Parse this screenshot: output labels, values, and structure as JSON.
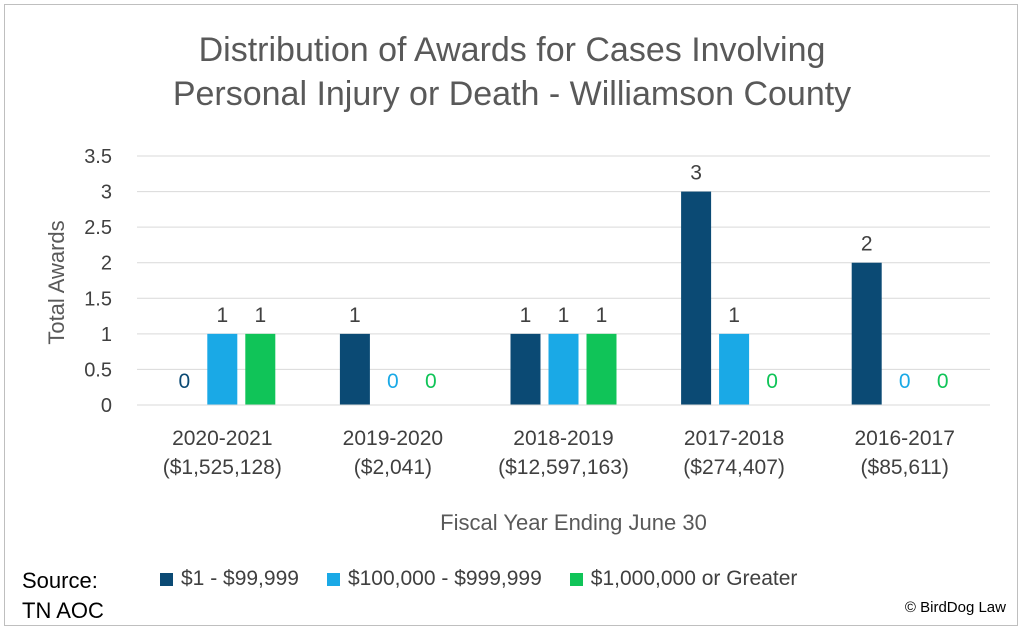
{
  "chart_data": {
    "type": "bar",
    "title_lines": [
      "Distribution of Awards for Cases Involving",
      "Personal Injury or Death - Williamson County"
    ],
    "xlabel": "Fiscal Year Ending June 30",
    "ylabel": "Total Awards",
    "ylim": [
      0,
      3.5
    ],
    "yticks": [
      "0",
      "0.5",
      "1",
      "1.5",
      "2",
      "2.5",
      "3",
      "3.5"
    ],
    "grid": true,
    "legend_position": "bottom",
    "categories": [
      [
        "2020-2021",
        "($1,525,128)"
      ],
      [
        "2019-2020",
        "($2,041)"
      ],
      [
        "2018-2019",
        "($12,597,163)"
      ],
      [
        "2017-2018",
        "($274,407)"
      ],
      [
        "2016-2017",
        "($85,611)"
      ]
    ],
    "series": [
      {
        "name": "$1 - $99,999",
        "color": "#0b4a74",
        "values": [
          0,
          1,
          1,
          3,
          2
        ]
      },
      {
        "name": "$100,000 - $999,999",
        "color": "#1aa9e6",
        "values": [
          1,
          0,
          1,
          1,
          0
        ]
      },
      {
        "name": "$1,000,000 or Greater",
        "color": "#10c458",
        "values": [
          1,
          0,
          1,
          0,
          0
        ]
      }
    ]
  },
  "source_text": [
    "Source:",
    "TN AOC"
  ],
  "copyright": "© BirdDog Law"
}
